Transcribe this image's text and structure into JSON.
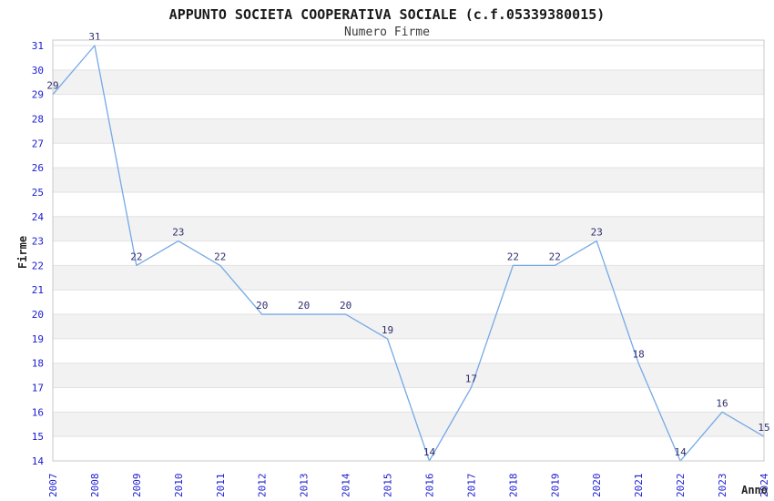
{
  "title": "APPUNTO SOCIETA COOPERATIVA SOCIALE (c.f.05339380015)",
  "subtitle": "Numero Firme",
  "chart_data": {
    "type": "line",
    "title": "APPUNTO SOCIETA COOPERATIVA SOCIALE (c.f.05339380015)",
    "subtitle": "Numero Firme",
    "xlabel": "Anno",
    "ylabel": "Firme",
    "x": [
      "2007",
      "2008",
      "2009",
      "2010",
      "2011",
      "2012",
      "2013",
      "2014",
      "2015",
      "2016",
      "2017",
      "2018",
      "2019",
      "2020",
      "2021",
      "2022",
      "2023",
      "2024"
    ],
    "series": [
      {
        "name": "Numero Firme",
        "values": [
          29,
          31,
          22,
          23,
          22,
          20,
          20,
          20,
          19,
          14,
          17,
          22,
          22,
          23,
          18,
          14,
          16,
          15
        ]
      }
    ],
    "ylim": [
      14,
      31
    ],
    "ytick_step": 1,
    "point_labels": true,
    "grid": "horizontal-bands-alternating",
    "legend": "none"
  },
  "colors": {
    "line": "#74a9e6",
    "tick_label": "#1a1ad2",
    "point_label": "#2e2e6e",
    "band_gray": "#f2f2f2",
    "band_white": "#ffffff",
    "gridline": "#e2e2e2",
    "plot_border": "#c8c8c8",
    "title_text": "#1a1a1a",
    "axis_title_text": "#222222"
  }
}
